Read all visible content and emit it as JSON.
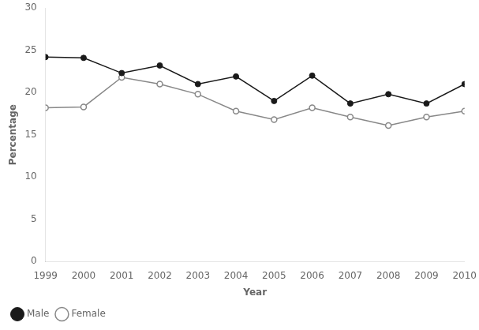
{
  "chart_data": {
    "type": "line",
    "x": [
      1999,
      2000,
      2001,
      2002,
      2003,
      2004,
      2005,
      2006,
      2007,
      2008,
      2009,
      2010
    ],
    "series": [
      {
        "name": "Male",
        "color": "#1a1a1a",
        "marker": "circle",
        "values": [
          24.2,
          24.1,
          22.3,
          23.2,
          21.0,
          21.9,
          19.0,
          22.0,
          18.7,
          19.8,
          18.7,
          21.0
        ]
      },
      {
        "name": "Female",
        "color": "#888888",
        "marker": "open_circle",
        "values": [
          18.2,
          18.3,
          21.8,
          21.0,
          19.8,
          17.8,
          16.8,
          18.2,
          17.1,
          16.1,
          17.1,
          17.8
        ]
      }
    ],
    "xlabel": "Year",
    "ylabel": "Percentage",
    "xlim": [
      1999,
      2010
    ],
    "xticks": [
      1999,
      2000,
      2001,
      2002,
      2003,
      2004,
      2005,
      2006,
      2007,
      2008,
      2009,
      2010
    ],
    "ylim": [
      0,
      30
    ],
    "yticks": [
      0,
      5,
      10,
      15,
      20,
      25,
      30
    ],
    "grid": false,
    "legend": "lower left"
  }
}
